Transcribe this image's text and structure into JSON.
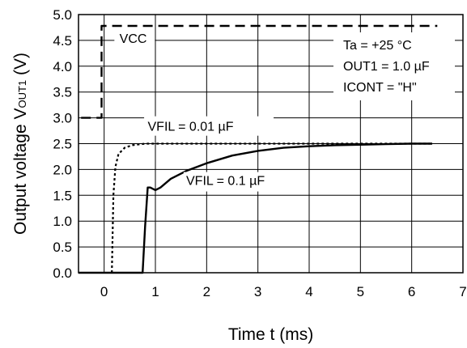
{
  "chart_data": {
    "type": "line",
    "xlabel": "Time t (ms)",
    "ylabel": {
      "main": "Output voltage V",
      "sub": "OUT1",
      "unit": " (V)"
    },
    "xlim": [
      -0.5,
      7
    ],
    "ylim": [
      0,
      5
    ],
    "xticks": [
      "0",
      "1",
      "2",
      "3",
      "4",
      "5",
      "6",
      "7"
    ],
    "xtick_values": [
      0,
      1,
      2,
      3,
      4,
      5,
      6,
      7
    ],
    "yticks": [
      "0.0",
      "0.5",
      "1.0",
      "1.5",
      "2.0",
      "2.5",
      "3.0",
      "3.5",
      "4.0",
      "4.5",
      "5.0"
    ],
    "ytick_values": [
      0,
      0.5,
      1,
      1.5,
      2,
      2.5,
      3,
      3.5,
      4,
      4.5,
      5
    ],
    "grid": true,
    "conditions": [
      "Ta = +25 °C",
      "OUT1 = 1.0 µF",
      "ICONT = \"H\""
    ],
    "series": [
      {
        "name": "VCC",
        "style": "dashed",
        "x": [
          -0.45,
          -0.05,
          -0.05,
          0.0,
          0.0,
          6.5
        ],
        "y": [
          3.0,
          3.0,
          4.78,
          4.78,
          4.78,
          4.78
        ]
      },
      {
        "name": "VFIL = 0.01 µF",
        "style": "dotted",
        "x": [
          0.15,
          0.18,
          0.22,
          0.28,
          0.4,
          0.55,
          0.8,
          1.2,
          2.0,
          3.0,
          4.0,
          5.0,
          6.4
        ],
        "y": [
          0.0,
          1.5,
          2.05,
          2.3,
          2.42,
          2.47,
          2.5,
          2.5,
          2.5,
          2.5,
          2.5,
          2.5,
          2.5
        ]
      },
      {
        "name": "VFIL = 0.1 µF",
        "style": "solid",
        "x": [
          -0.5,
          0.75,
          0.8,
          0.85,
          0.9,
          1.0,
          1.1,
          1.3,
          1.6,
          2.0,
          2.5,
          3.0,
          3.5,
          4.0,
          4.5,
          5.0,
          5.5,
          6.0,
          6.4
        ],
        "y": [
          0.0,
          0.0,
          0.9,
          1.65,
          1.65,
          1.6,
          1.65,
          1.82,
          1.97,
          2.12,
          2.27,
          2.36,
          2.42,
          2.45,
          2.47,
          2.48,
          2.49,
          2.5,
          2.5
        ]
      }
    ]
  }
}
